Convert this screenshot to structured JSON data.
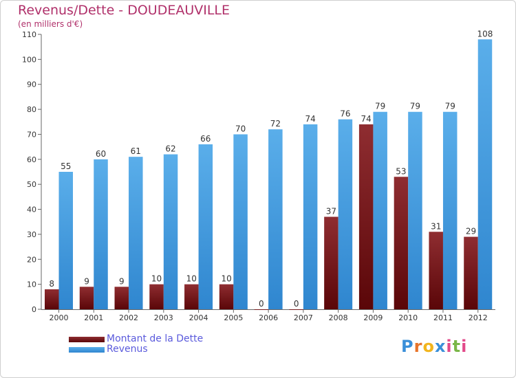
{
  "title": "Revenus/Dette - DOUDEAUVILLE",
  "subtitle": "(en milliers d'€)",
  "logo": {
    "letters": [
      "P",
      "r",
      "o",
      "x",
      "i",
      "t",
      "i"
    ],
    "colors": [
      "#3a8fd9",
      "#e8742a",
      "#f2b51d",
      "#3a8fd9",
      "#e24a8a",
      "#7ab648",
      "#e24a8a"
    ]
  },
  "legend": [
    {
      "label": "Montant de la Dette",
      "color": "#6e0f12"
    },
    {
      "label": "Revenus",
      "color": "#3f97dc"
    }
  ],
  "chart_data": {
    "type": "bar",
    "categories": [
      "2000",
      "2001",
      "2002",
      "2003",
      "2004",
      "2005",
      "2006",
      "2007",
      "2008",
      "2009",
      "2010",
      "2011",
      "2012"
    ],
    "series": [
      {
        "name": "Montant de la Dette",
        "color": "#7a1a1e",
        "values": [
          8,
          9,
          9,
          10,
          10,
          10,
          0,
          0,
          37,
          74,
          53,
          31,
          29
        ]
      },
      {
        "name": "Revenus",
        "color": "#4aa2e2",
        "values": [
          55,
          60,
          61,
          62,
          66,
          70,
          72,
          74,
          76,
          79,
          79,
          79,
          108
        ]
      }
    ],
    "ylim": [
      0,
      110
    ],
    "yticks": [
      0,
      10,
      20,
      30,
      40,
      50,
      60,
      70,
      80,
      90,
      100,
      110
    ],
    "grid": false,
    "legend_position": "bottom-left"
  }
}
